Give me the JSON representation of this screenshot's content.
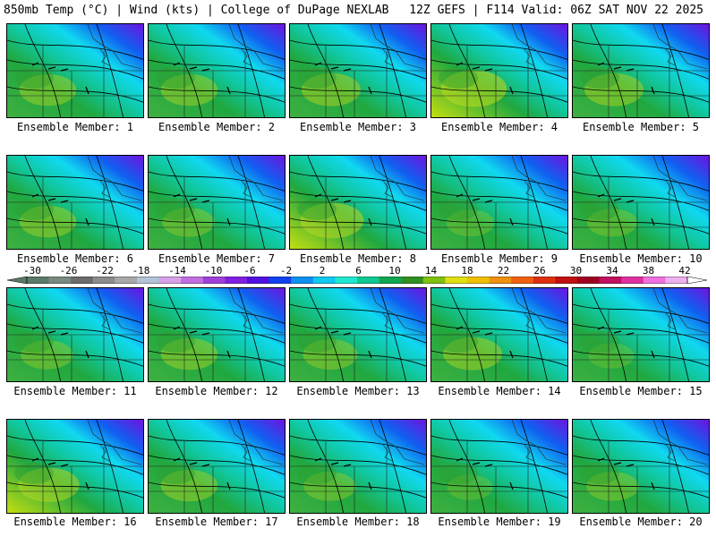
{
  "header": {
    "left": "850mb Temp (°C) | Wind (kts) | College of DuPage NEXLAB",
    "right": "12Z GEFS | F114 Valid: 06Z SAT NOV 22 2025"
  },
  "members": [
    {
      "label": "Ensemble Member: 1",
      "warmth": 0.55
    },
    {
      "label": "Ensemble Member: 2",
      "warmth": 0.55
    },
    {
      "label": "Ensemble Member: 3",
      "warmth": 0.6
    },
    {
      "label": "Ensemble Member: 4",
      "warmth": 0.75
    },
    {
      "label": "Ensemble Member: 5",
      "warmth": 0.6
    },
    {
      "label": "Ensemble Member: 6",
      "warmth": 0.55
    },
    {
      "label": "Ensemble Member: 7",
      "warmth": 0.45
    },
    {
      "label": "Ensemble Member: 8",
      "warmth": 0.7
    },
    {
      "label": "Ensemble Member: 9",
      "warmth": 0.35
    },
    {
      "label": "Ensemble Member: 10",
      "warmth": 0.4
    },
    {
      "label": "Ensemble Member: 11",
      "warmth": 0.45
    },
    {
      "label": "Ensemble Member: 12",
      "warmth": 0.55
    },
    {
      "label": "Ensemble Member: 13",
      "warmth": 0.5
    },
    {
      "label": "Ensemble Member: 14",
      "warmth": 0.6
    },
    {
      "label": "Ensemble Member: 15",
      "warmth": 0.3
    },
    {
      "label": "Ensemble Member: 16",
      "warmth": 0.65
    },
    {
      "label": "Ensemble Member: 17",
      "warmth": 0.55
    },
    {
      "label": "Ensemble Member: 18",
      "warmth": 0.45
    },
    {
      "label": "Ensemble Member: 19",
      "warmth": 0.3
    },
    {
      "label": "Ensemble Member: 20",
      "warmth": 0.45
    }
  ],
  "colorbar": {
    "ticks": [
      "-30",
      "-26",
      "-22",
      "-18",
      "-14",
      "-10",
      "-6",
      "-2",
      "2",
      "6",
      "10",
      "14",
      "18",
      "22",
      "26",
      "30",
      "34",
      "38",
      "42"
    ],
    "colors": [
      "#5a7a6a",
      "#7a8a80",
      "#6c6c6c",
      "#8c8c8c",
      "#a8a8a8",
      "#b4c4d8",
      "#d8a0e8",
      "#c070e0",
      "#a040d8",
      "#8020e0",
      "#5010e0",
      "#1040f0",
      "#1090f0",
      "#10c8f0",
      "#20e8d0",
      "#10c890",
      "#10a850",
      "#309020",
      "#80c010",
      "#e0e010",
      "#f0c000",
      "#f09010",
      "#f06010",
      "#e03010",
      "#c01010",
      "#a00020",
      "#c01060",
      "#e030a0",
      "#f070e0",
      "#f0b0f0"
    ]
  }
}
